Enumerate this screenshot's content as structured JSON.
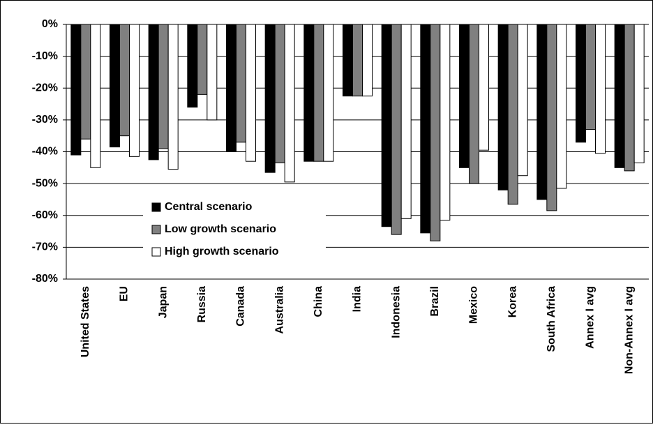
{
  "chart_data": {
    "type": "bar",
    "categories": [
      "United States",
      "EU",
      "Japan",
      "Russia",
      "Canada",
      "Australia",
      "China",
      "India",
      "Indonesia",
      "Brazil",
      "Mexico",
      "Korea",
      "South Africa",
      "Annex I avg",
      "Non-Annex I avg"
    ],
    "series": [
      {
        "name": "Central scenario",
        "color": "#000000",
        "values": [
          -41,
          -38.5,
          -42.5,
          -26,
          -40,
          -46.5,
          -43,
          -22.5,
          -63.5,
          -65.5,
          -45,
          -52,
          -55,
          -37,
          -45
        ]
      },
      {
        "name": "Low growth scenario",
        "color": "#808080",
        "values": [
          -36,
          -35,
          -39,
          -22,
          -37,
          -43.5,
          -43,
          -22.5,
          -66,
          -68,
          -50,
          -56.5,
          -58.5,
          -33,
          -46
        ]
      },
      {
        "name": "High growth scenario",
        "color": "#ffffff",
        "values": [
          -45,
          -41.5,
          -45.5,
          -30,
          -43,
          -49.5,
          -43,
          -22.5,
          -61,
          -61.5,
          -39.5,
          -47.5,
          -51.5,
          -40.5,
          -43.5
        ]
      }
    ],
    "ylim": [
      -80,
      0
    ],
    "yticks": [
      {
        "value": 0,
        "label": "0%"
      },
      {
        "value": -10,
        "label": "-10%"
      },
      {
        "value": -20,
        "label": "-20%"
      },
      {
        "value": -30,
        "label": "-30%"
      },
      {
        "value": -40,
        "label": "-40%"
      },
      {
        "value": -50,
        "label": "-50%"
      },
      {
        "value": -60,
        "label": "-60%"
      },
      {
        "value": -70,
        "label": "-70%"
      },
      {
        "value": -80,
        "label": "-80%"
      }
    ],
    "grid": true
  }
}
